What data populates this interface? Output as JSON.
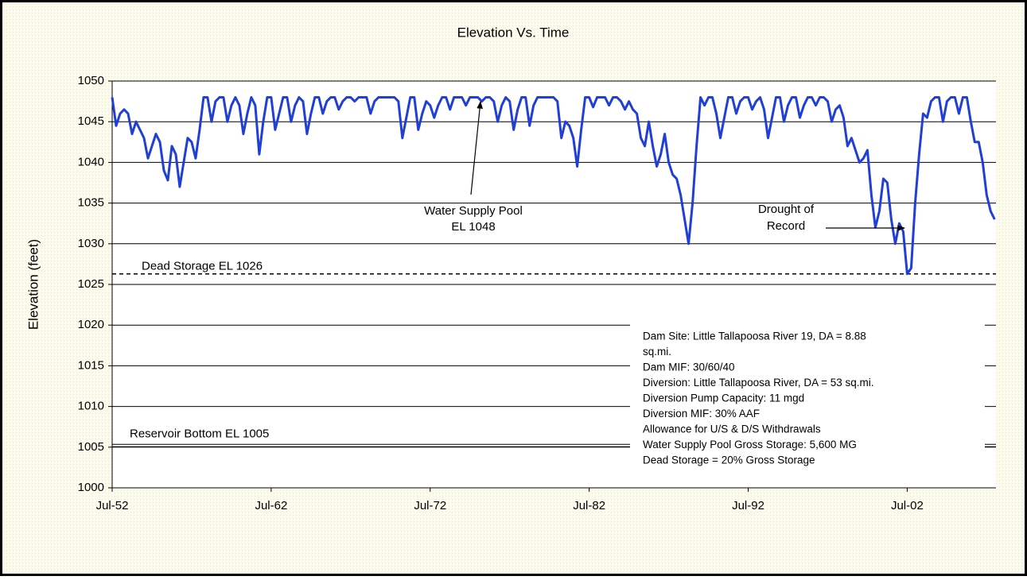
{
  "chart_data": {
    "type": "line",
    "title": "Elevation Vs. Time",
    "ylabel": "Elevation (feet)",
    "ylim": [
      1000,
      1050
    ],
    "yticks": [
      1000,
      1005,
      1010,
      1015,
      1020,
      1025,
      1030,
      1035,
      1040,
      1045,
      1050
    ],
    "xlim": [
      "Jul-52",
      "Feb-08"
    ],
    "xticks": [
      "Jul-52",
      "Jul-62",
      "Jul-72",
      "Jul-82",
      "Jul-92",
      "Jul-02"
    ],
    "grid": true,
    "x": [
      "Jul-52",
      "Oct-52",
      "Jan-53",
      "Apr-53",
      "Jul-53",
      "Oct-53",
      "Jan-54",
      "Apr-54",
      "Jul-54",
      "Oct-54",
      "Jan-55",
      "Apr-55",
      "Jul-55",
      "Oct-55",
      "Jan-56",
      "Apr-56",
      "Jul-56",
      "Oct-56",
      "Jan-57",
      "Apr-57",
      "Jul-57",
      "Oct-57",
      "Jan-58",
      "Apr-58",
      "Jul-58",
      "Oct-58",
      "Jan-59",
      "Apr-59",
      "Jul-59",
      "Oct-59",
      "Jan-60",
      "Apr-60",
      "Jul-60",
      "Oct-60",
      "Jan-61",
      "Apr-61",
      "Jul-61",
      "Oct-61",
      "Jan-62",
      "Apr-62",
      "Jul-62",
      "Oct-62",
      "Jan-63",
      "Apr-63",
      "Jul-63",
      "Oct-63",
      "Jan-64",
      "Apr-64",
      "Jul-64",
      "Oct-64",
      "Jan-65",
      "Apr-65",
      "Jul-65",
      "Oct-65",
      "Jan-66",
      "Apr-66",
      "Jul-66",
      "Oct-66",
      "Jan-67",
      "Apr-67",
      "Jul-67",
      "Oct-67",
      "Jan-68",
      "Apr-68",
      "Jul-68",
      "Oct-68",
      "Jan-69",
      "Apr-69",
      "Jul-69",
      "Oct-69",
      "Jan-70",
      "Apr-70",
      "Jul-70",
      "Oct-70",
      "Jan-71",
      "Apr-71",
      "Jul-71",
      "Oct-71",
      "Jan-72",
      "Apr-72",
      "Jul-72",
      "Oct-72",
      "Jan-73",
      "Apr-73",
      "Jul-73",
      "Oct-73",
      "Jan-74",
      "Apr-74",
      "Jul-74",
      "Oct-74",
      "Jan-75",
      "Apr-75",
      "Jul-75",
      "Oct-75",
      "Jan-76",
      "Apr-76",
      "Jul-76",
      "Oct-76",
      "Jan-77",
      "Apr-77",
      "Jul-77",
      "Oct-77",
      "Jan-78",
      "Apr-78",
      "Jul-78",
      "Oct-78",
      "Jan-79",
      "Apr-79",
      "Jul-79",
      "Oct-79",
      "Jan-80",
      "Apr-80",
      "Jul-80",
      "Oct-80",
      "Jan-81",
      "Apr-81",
      "Jul-81",
      "Oct-81",
      "Jan-82",
      "Apr-82",
      "Jul-82",
      "Oct-82",
      "Jan-83",
      "Apr-83",
      "Jul-83",
      "Oct-83",
      "Jan-84",
      "Apr-84",
      "Jul-84",
      "Oct-84",
      "Jan-85",
      "Apr-85",
      "Jul-85",
      "Oct-85",
      "Jan-86",
      "Apr-86",
      "Jul-86",
      "Oct-86",
      "Jan-87",
      "Apr-87",
      "Jul-87",
      "Oct-87",
      "Jan-88",
      "Apr-88",
      "Jul-88",
      "Oct-88",
      "Jan-89",
      "Apr-89",
      "Jul-89",
      "Oct-89",
      "Jan-90",
      "Apr-90",
      "Jul-90",
      "Oct-90",
      "Jan-91",
      "Apr-91",
      "Jul-91",
      "Oct-91",
      "Jan-92",
      "Apr-92",
      "Jul-92",
      "Oct-92",
      "Jan-93",
      "Apr-93",
      "Jul-93",
      "Oct-93",
      "Jan-94",
      "Apr-94",
      "Jul-94",
      "Oct-94",
      "Jan-95",
      "Apr-95",
      "Jul-95",
      "Oct-95",
      "Jan-96",
      "Apr-96",
      "Jul-96",
      "Oct-96",
      "Jan-97",
      "Apr-97",
      "Jul-97",
      "Oct-97",
      "Jan-98",
      "Apr-98",
      "Jul-98",
      "Oct-98",
      "Jan-99",
      "Apr-99",
      "Jul-99",
      "Oct-99",
      "Jan-00",
      "Apr-00",
      "Jul-00",
      "Oct-00",
      "Jan-01",
      "Apr-01",
      "Jul-01",
      "Oct-01",
      "Jan-02",
      "Apr-02",
      "Jul-02",
      "Oct-02",
      "Jan-03",
      "Apr-03",
      "Jul-03",
      "Oct-03",
      "Jan-04",
      "Apr-04",
      "Jul-04",
      "Oct-04",
      "Jan-05",
      "Apr-05",
      "Jul-05",
      "Oct-05",
      "Jan-06",
      "Apr-06",
      "Jul-06",
      "Oct-06",
      "Jan-07",
      "Apr-07",
      "Jul-07",
      "Oct-07",
      "Jan-08"
    ],
    "series": [
      {
        "name": "Elevation",
        "color": "#1f3fd6",
        "values": [
          1048,
          1044.5,
          1046,
          1046.5,
          1046,
          1043.5,
          1045,
          1044,
          1043,
          1040.5,
          1042,
          1043.5,
          1042.5,
          1039,
          1037.8,
          1042,
          1041,
          1037,
          1040,
          1043,
          1042.5,
          1040.5,
          1044,
          1048,
          1048,
          1045,
          1047.5,
          1048,
          1048,
          1045,
          1047,
          1048,
          1047,
          1043.5,
          1046,
          1048,
          1047,
          1041,
          1045,
          1048,
          1048,
          1044,
          1046,
          1048,
          1048,
          1045,
          1047,
          1048,
          1047.5,
          1043.5,
          1046,
          1048,
          1048,
          1046,
          1047.5,
          1048,
          1048,
          1046.5,
          1047.5,
          1048,
          1048,
          1047.5,
          1048,
          1048,
          1048,
          1046,
          1047.5,
          1048,
          1048,
          1048,
          1048,
          1048,
          1047.5,
          1043,
          1045.5,
          1048,
          1048,
          1044,
          1046,
          1047.5,
          1047,
          1045.5,
          1047,
          1048,
          1048,
          1046.5,
          1048,
          1048,
          1048,
          1047,
          1048,
          1048,
          1048,
          1047.5,
          1048,
          1048,
          1047.5,
          1045,
          1047,
          1048,
          1047.5,
          1044,
          1046.5,
          1048,
          1048,
          1044.5,
          1047,
          1048,
          1048,
          1048,
          1048,
          1048,
          1047.5,
          1043,
          1045,
          1044.5,
          1043,
          1039.5,
          1044,
          1048,
          1048,
          1046.8,
          1048,
          1048,
          1048,
          1047,
          1048,
          1048,
          1047.5,
          1046.5,
          1047.5,
          1046.5,
          1046,
          1043,
          1042,
          1045,
          1042,
          1039.5,
          1041,
          1043.5,
          1040,
          1038.5,
          1038,
          1036,
          1033,
          1030,
          1035,
          1042,
          1048,
          1047,
          1048,
          1048,
          1046,
          1043,
          1045.5,
          1048,
          1048,
          1046,
          1047.5,
          1048,
          1048,
          1046.5,
          1047.5,
          1048,
          1046.5,
          1043,
          1045.5,
          1048,
          1048,
          1045,
          1047,
          1048,
          1048,
          1045.5,
          1047,
          1048,
          1048,
          1047,
          1048,
          1048,
          1047.5,
          1045,
          1046.5,
          1047,
          1045.5,
          1042,
          1043,
          1041.5,
          1040,
          1040.5,
          1041.5,
          1036,
          1032,
          1034,
          1038,
          1037.5,
          1033,
          1030,
          1032.5,
          1031.5,
          1026.3,
          1027,
          1035,
          1041,
          1046,
          1045.5,
          1047.5,
          1048,
          1048,
          1045,
          1047.5,
          1048,
          1048,
          1046,
          1048,
          1048,
          1045,
          1042.5,
          1042.5,
          1040,
          1036,
          1034,
          1033
        ]
      }
    ],
    "reference_lines": [
      {
        "label": "Dead Storage EL 1026",
        "value": 1026.3
      },
      {
        "label": "Reservoir Bottom EL 1005",
        "value": 1005.2
      }
    ],
    "annotations": [
      {
        "text": [
          "Water Supply Pool",
          "EL  1048"
        ]
      },
      {
        "text": [
          "Drought of",
          "Record"
        ]
      }
    ],
    "info_box": [
      "Dam Site: Little Tallapoosa River 19, DA = 8.88",
      "sq.mi.",
      "Dam MIF: 30/60/40",
      "Diversion: Little Tallapoosa River, DA = 53 sq.mi.",
      "Diversion Pump Capacity: 11 mgd",
      "Diversion MIF: 30% AAF",
      "Allowance for U/S & D/S Withdrawals",
      "Water Supply Pool Gross Storage: 5,600 MG",
      "Dead Storage = 20% Gross Storage"
    ]
  }
}
